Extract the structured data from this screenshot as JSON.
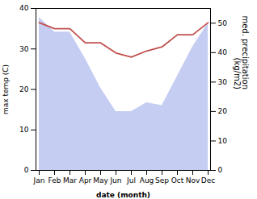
{
  "chart_data": {
    "type": "line",
    "xlabel": "date (month)",
    "ylabel": "max temp (C)",
    "y2label": "med. precipitation\n(kg/m2)",
    "categories": [
      "Jan",
      "Feb",
      "Mar",
      "Apr",
      "May",
      "Jun",
      "Jul",
      "Aug",
      "Sep",
      "Oct",
      "Nov",
      "Dec"
    ],
    "series": [
      {
        "type": "line",
        "color": "#c0504d",
        "values": [
          36.5,
          35.0,
          35.0,
          31.5,
          31.5,
          29.0,
          28.0,
          29.5,
          30.5,
          33.5,
          33.5,
          36.5
        ]
      },
      {
        "type": "area",
        "axis": "y2",
        "color": "#b3bcee",
        "values": [
          52,
          47,
          47,
          38,
          28,
          20,
          20,
          23,
          22,
          32,
          42,
          50
        ]
      }
    ],
    "ylim": [
      0,
      40
    ],
    "yticks": [
      0,
      10,
      20,
      30,
      40
    ],
    "y2lim": [
      0,
      55
    ],
    "y2ticks": [
      0,
      10,
      20,
      30,
      40,
      50
    ],
    "grid": false
  }
}
